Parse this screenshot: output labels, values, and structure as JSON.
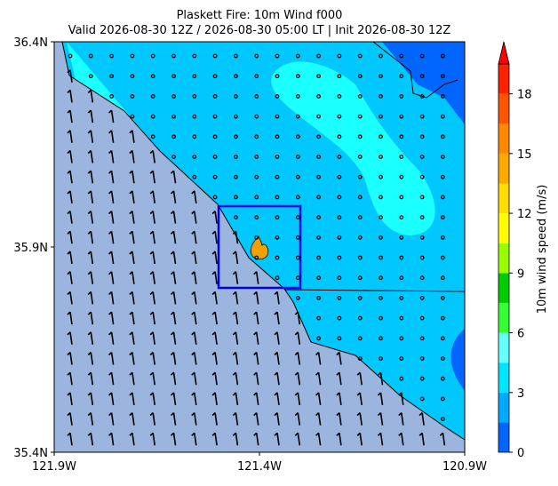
{
  "chart_data": {
    "type": "map",
    "title": "Plaskett Fire: 10m Wind f000",
    "subtitle": "Valid 2026-08-30 12Z / 2026-08-30 05:00 LT | Init 2026-08-30 12Z",
    "xlim": [
      -121.9,
      -120.9
    ],
    "xticks": [
      {
        "value": -121.9,
        "label": "121.9W"
      },
      {
        "value": -121.4,
        "label": "121.4W"
      },
      {
        "value": -120.9,
        "label": "120.9W"
      }
    ],
    "ylim": [
      35.4,
      36.4
    ],
    "yticks": [
      {
        "value": 35.4,
        "label": "35.4N"
      },
      {
        "value": 35.9,
        "label": "35.9N"
      },
      {
        "value": 36.4,
        "label": "36.4N"
      }
    ],
    "colorbar": {
      "label": "10m wind speed (m/s)",
      "clim": [
        0,
        19.5
      ],
      "ticks": [
        0,
        3,
        6,
        9,
        12,
        15,
        18
      ],
      "levels": [
        0,
        1.5,
        3,
        4.5,
        6,
        7.5,
        9,
        10.5,
        12,
        13.5,
        15,
        16.5,
        18,
        19.5
      ],
      "colors": [
        "#0066ff",
        "#00aaff",
        "#00e5ff",
        "#66ffff",
        "#33ff33",
        "#00cc00",
        "#99ff00",
        "#ffff00",
        "#ffdd00",
        "#ffaa00",
        "#ff8800",
        "#ff5500",
        "#ff2200"
      ],
      "extend_color": "#ff0000"
    }
  }
}
